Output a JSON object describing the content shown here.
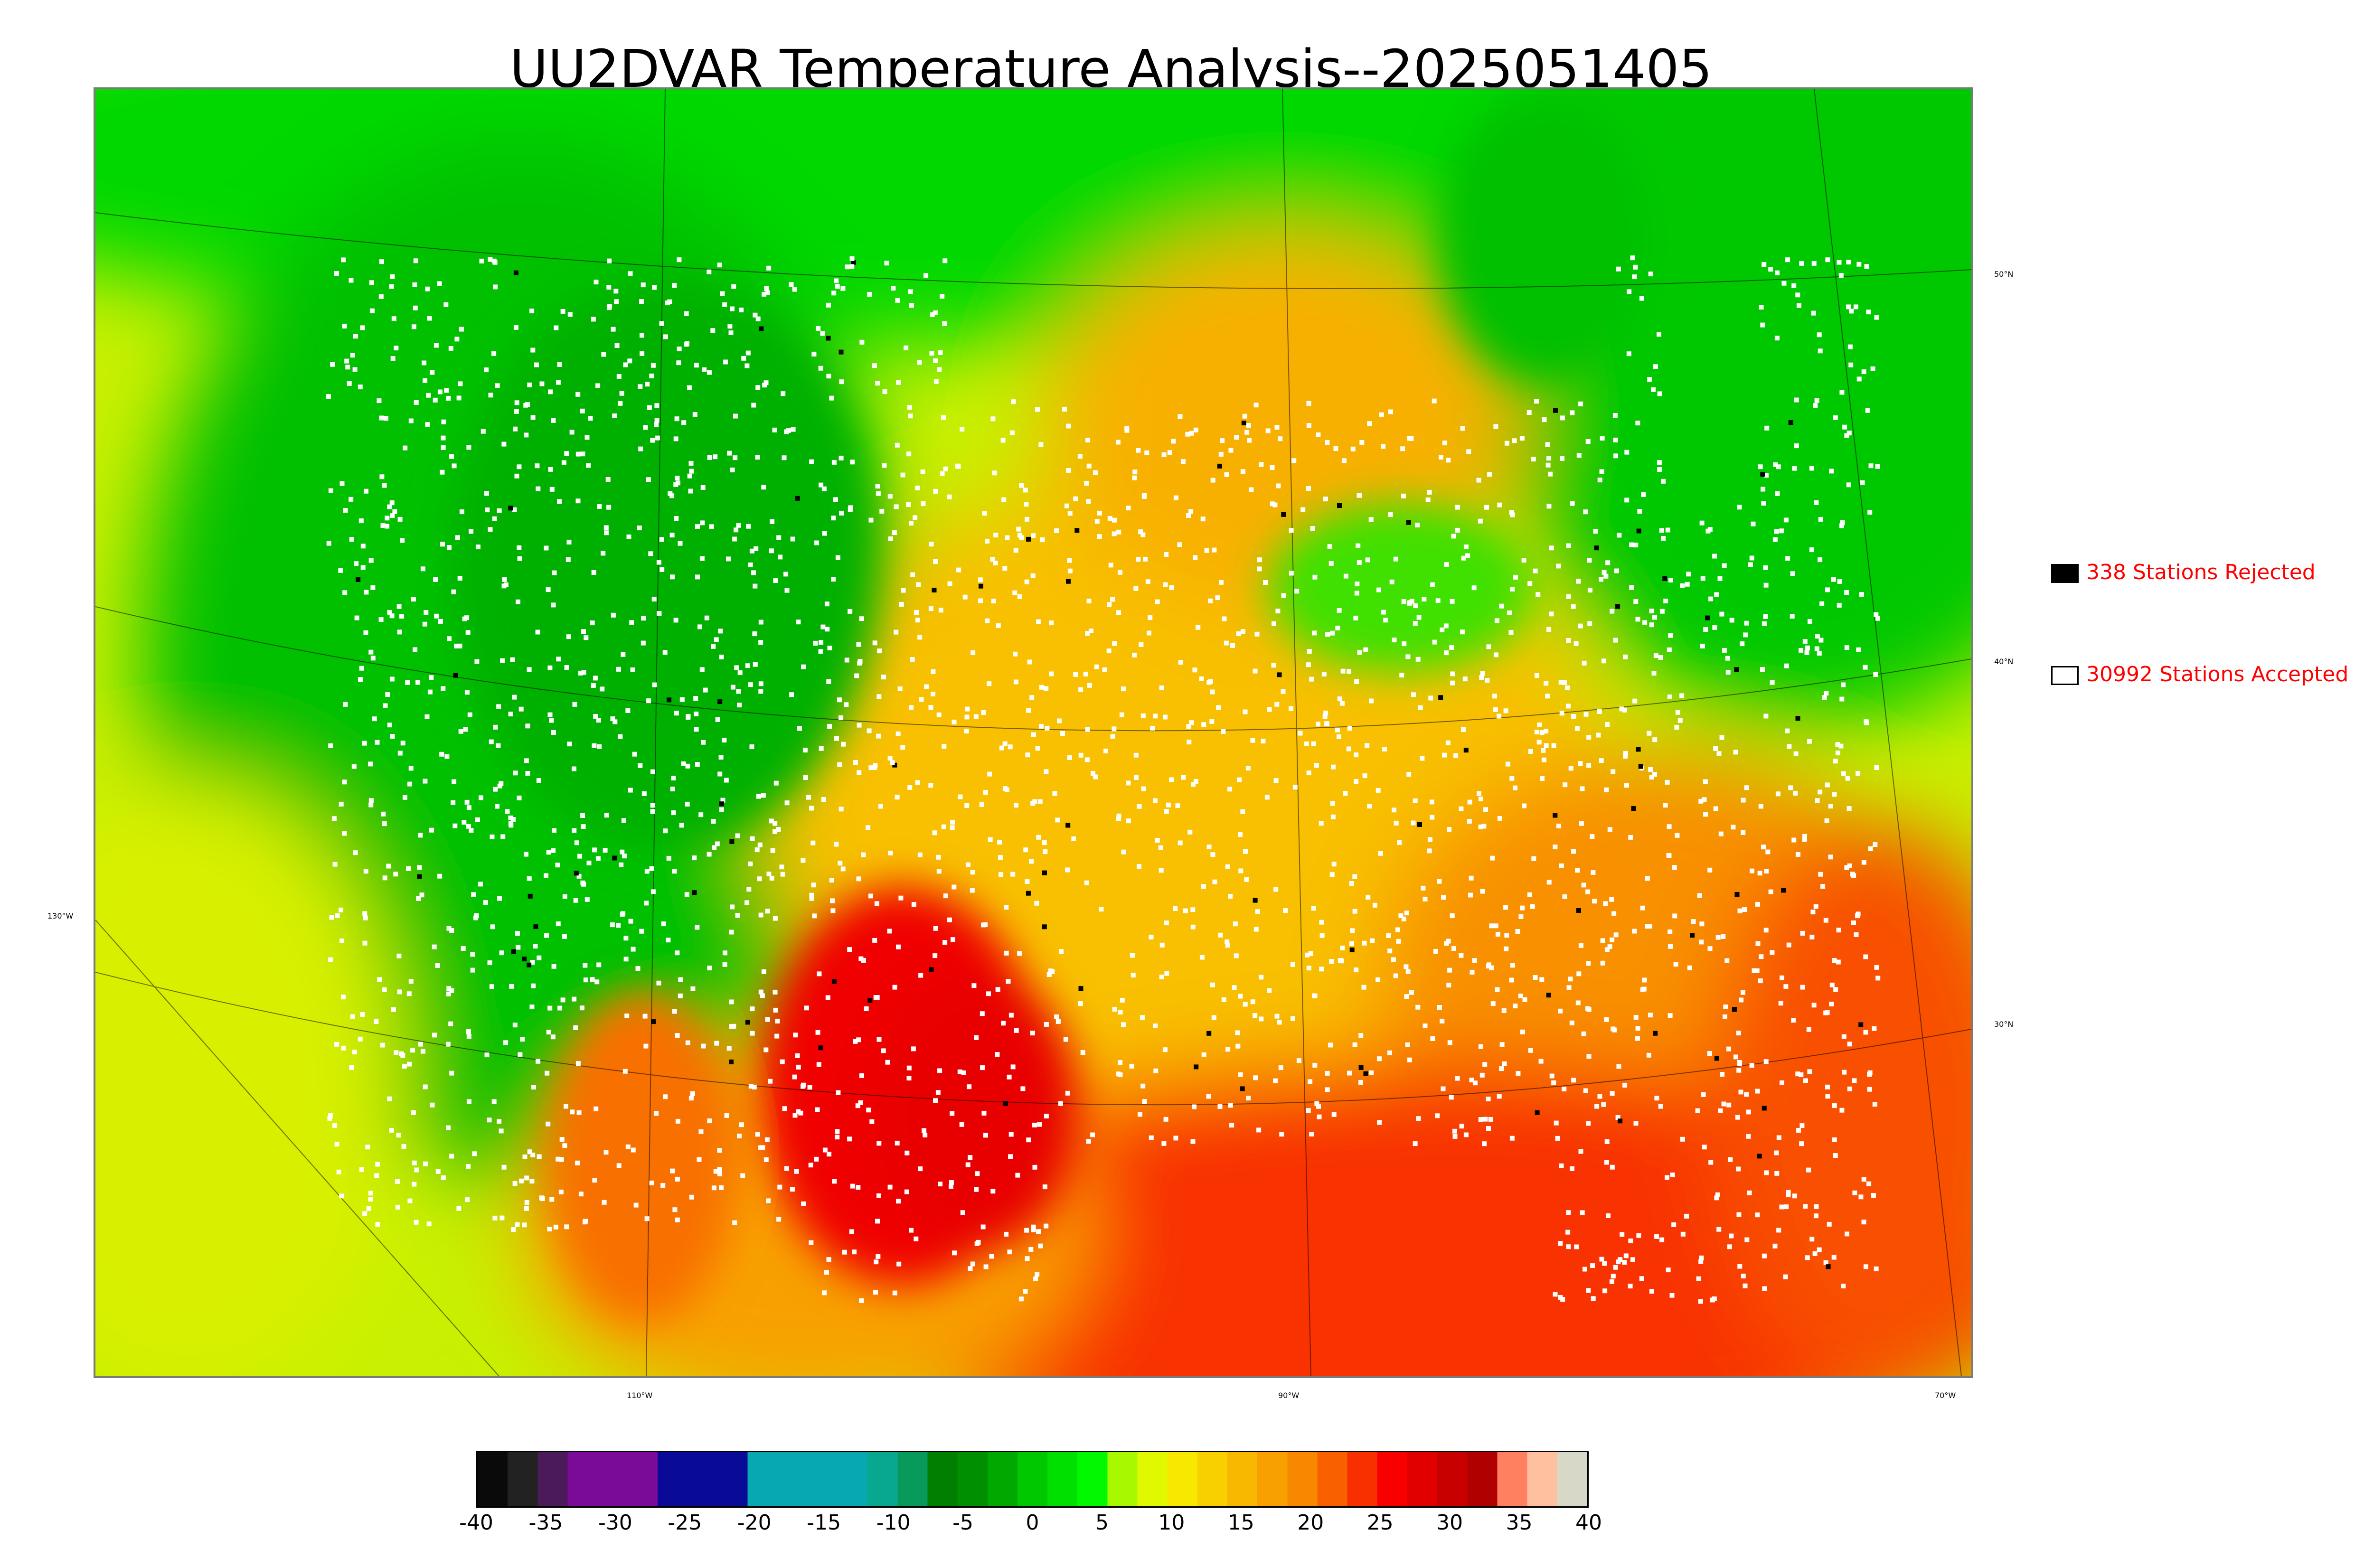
{
  "title": "UU2DVAR Temperature Analysis--2025051405",
  "legend": [
    {
      "label": "338 Stations Rejected",
      "fill": "#000000"
    },
    {
      "label": "30992 Stations Accepted",
      "fill": "#ffffff"
    }
  ],
  "longitude_labels": [
    "130°W",
    "110°W",
    "90°W",
    "70°W"
  ],
  "latitude_labels": [
    "50°N",
    "40°N",
    "30°N"
  ],
  "colorbar": {
    "min": -40,
    "max": 40,
    "ticks": [
      "-40",
      "-35",
      "-30",
      "-25",
      "-20",
      "-15",
      "-10",
      "-5",
      "0",
      "5",
      "10",
      "15",
      "20",
      "25",
      "30",
      "35",
      "40"
    ],
    "colors": [
      "#0a0a0a",
      "#222222",
      "#4a1a5a",
      "#7a0a98",
      "#7a0a98",
      "#7a0a98",
      "#0a0a98",
      "#0a0a98",
      "#0a0a98",
      "#08a8b0",
      "#08a8b0",
      "#08a8b0",
      "#08a8b0",
      "#08a890",
      "#089a5a",
      "#007f00",
      "#008f00",
      "#00a800",
      "#00c800",
      "#00e000",
      "#00f800",
      "#a8f800",
      "#e0f800",
      "#f8e800",
      "#f8d000",
      "#f8b800",
      "#f8a000",
      "#f88800",
      "#f86000",
      "#f83000",
      "#f80000",
      "#e00000",
      "#c80000",
      "#b00000",
      "#ff8060",
      "#ffc0a0",
      "#d8d8c8"
    ]
  },
  "colors": {
    "cold_land": "#00c800",
    "mild": "#e0f800",
    "warm": "#f8b000",
    "hot": "#f82000",
    "station_accepted": "#ffffff",
    "station_rejected": "#000000",
    "legend_text": "#ff0000"
  }
}
